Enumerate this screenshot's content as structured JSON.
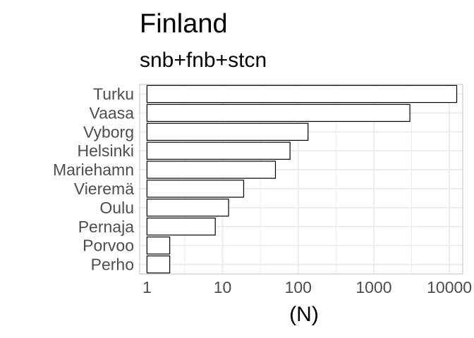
{
  "chart_data": {
    "type": "bar",
    "orientation": "horizontal",
    "title": "Finland",
    "subtitle": "snb+fnb+stcn",
    "xlabel": "(N)",
    "ylabel": "",
    "x_scale": "log10",
    "xlim": [
      0.8,
      15000
    ],
    "x_ticks": [
      1,
      10,
      100,
      1000,
      10000
    ],
    "x_tick_labels": [
      "1",
      "10",
      "100",
      "1000",
      "10000"
    ],
    "categories": [
      "Turku",
      "Vaasa",
      "Vyborg",
      "Helsinki",
      "Mariehamn",
      "Vieremä",
      "Oulu",
      "Pernaja",
      "Porvoo",
      "Perho"
    ],
    "values": [
      12500,
      3000,
      135,
      78,
      50,
      19,
      12,
      8,
      2,
      2
    ],
    "grid": true,
    "bar_fill": "#ffffff",
    "bar_stroke": "#000000",
    "grid_color": "#ebebeb",
    "panel_border_color": "#cccccc"
  }
}
